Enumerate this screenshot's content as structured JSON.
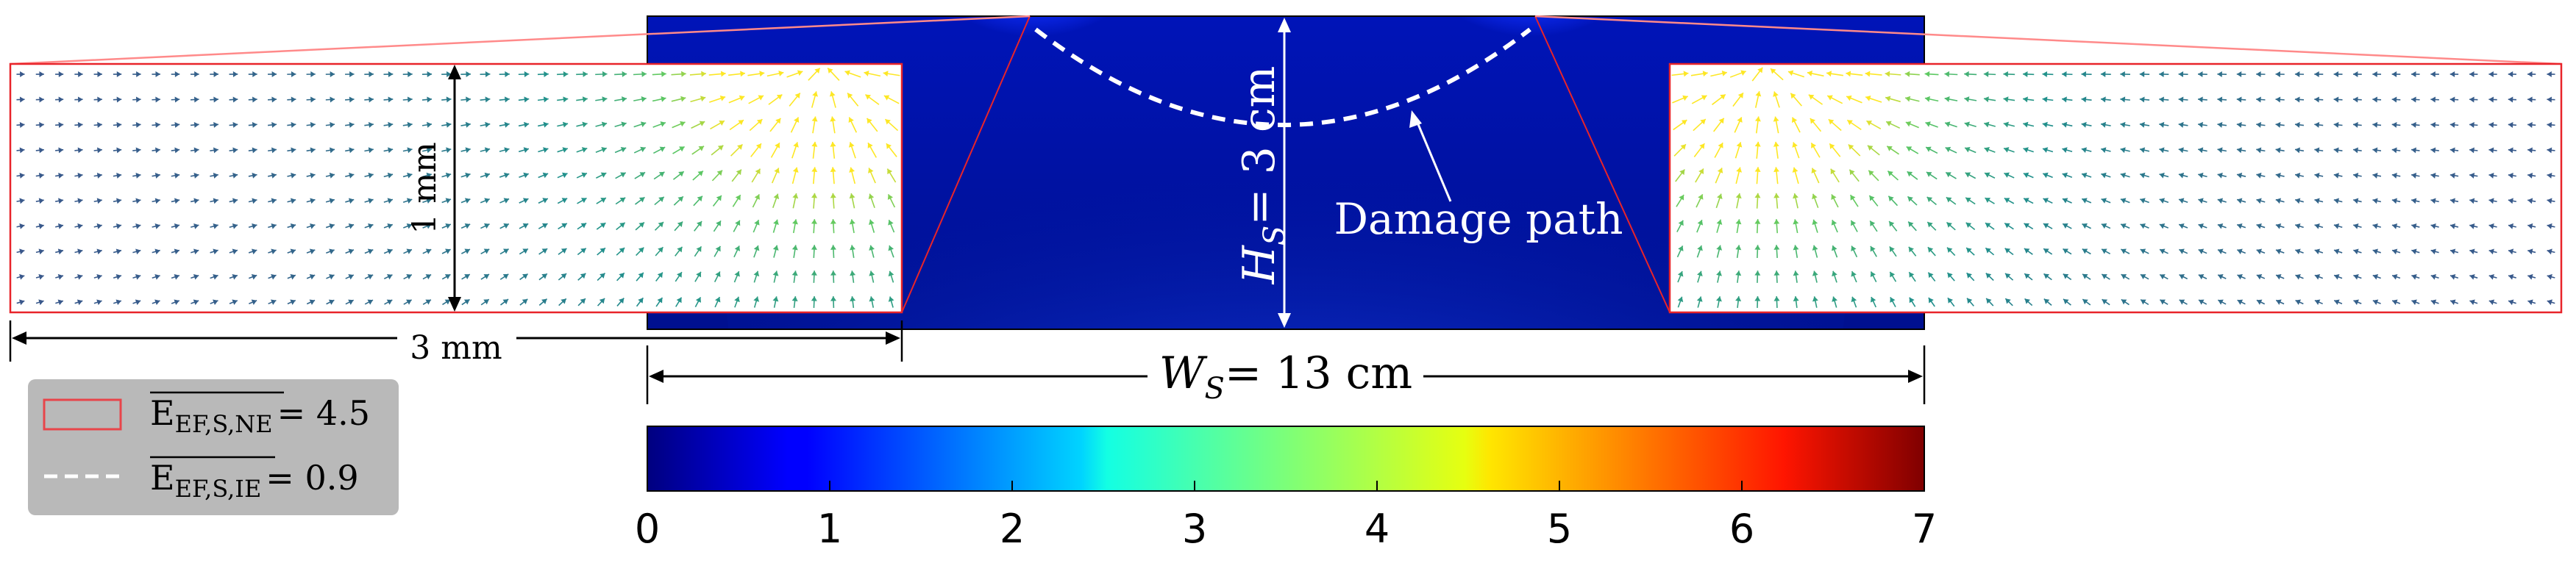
{
  "specimen": {
    "height_symbol": "H",
    "height_subscript": "S",
    "height_value": "= 3 cm",
    "width_symbol": "W",
    "width_subscript": "S",
    "width_value": "= 13 cm"
  },
  "annotations": {
    "damage_path": "Damage path"
  },
  "insets": {
    "height_label": "1 mm",
    "width_label": "3 mm",
    "border_color": "#e8242a"
  },
  "legend": {
    "items": [
      {
        "symbol": "E",
        "subscript": "EF,S,NE",
        "value": "= 4.5",
        "marker": "red-rectangle",
        "color": "#e8454a"
      },
      {
        "symbol": "E",
        "subscript": "EF,S,IE",
        "value": "= 0.9",
        "marker": "white-dashed-line",
        "color": "#ffffff"
      }
    ]
  },
  "colorbar": {
    "colormap": "jet",
    "min": 0,
    "max": 7,
    "ticks": [
      "0",
      "1",
      "2",
      "3",
      "4",
      "5",
      "6",
      "7"
    ]
  }
}
